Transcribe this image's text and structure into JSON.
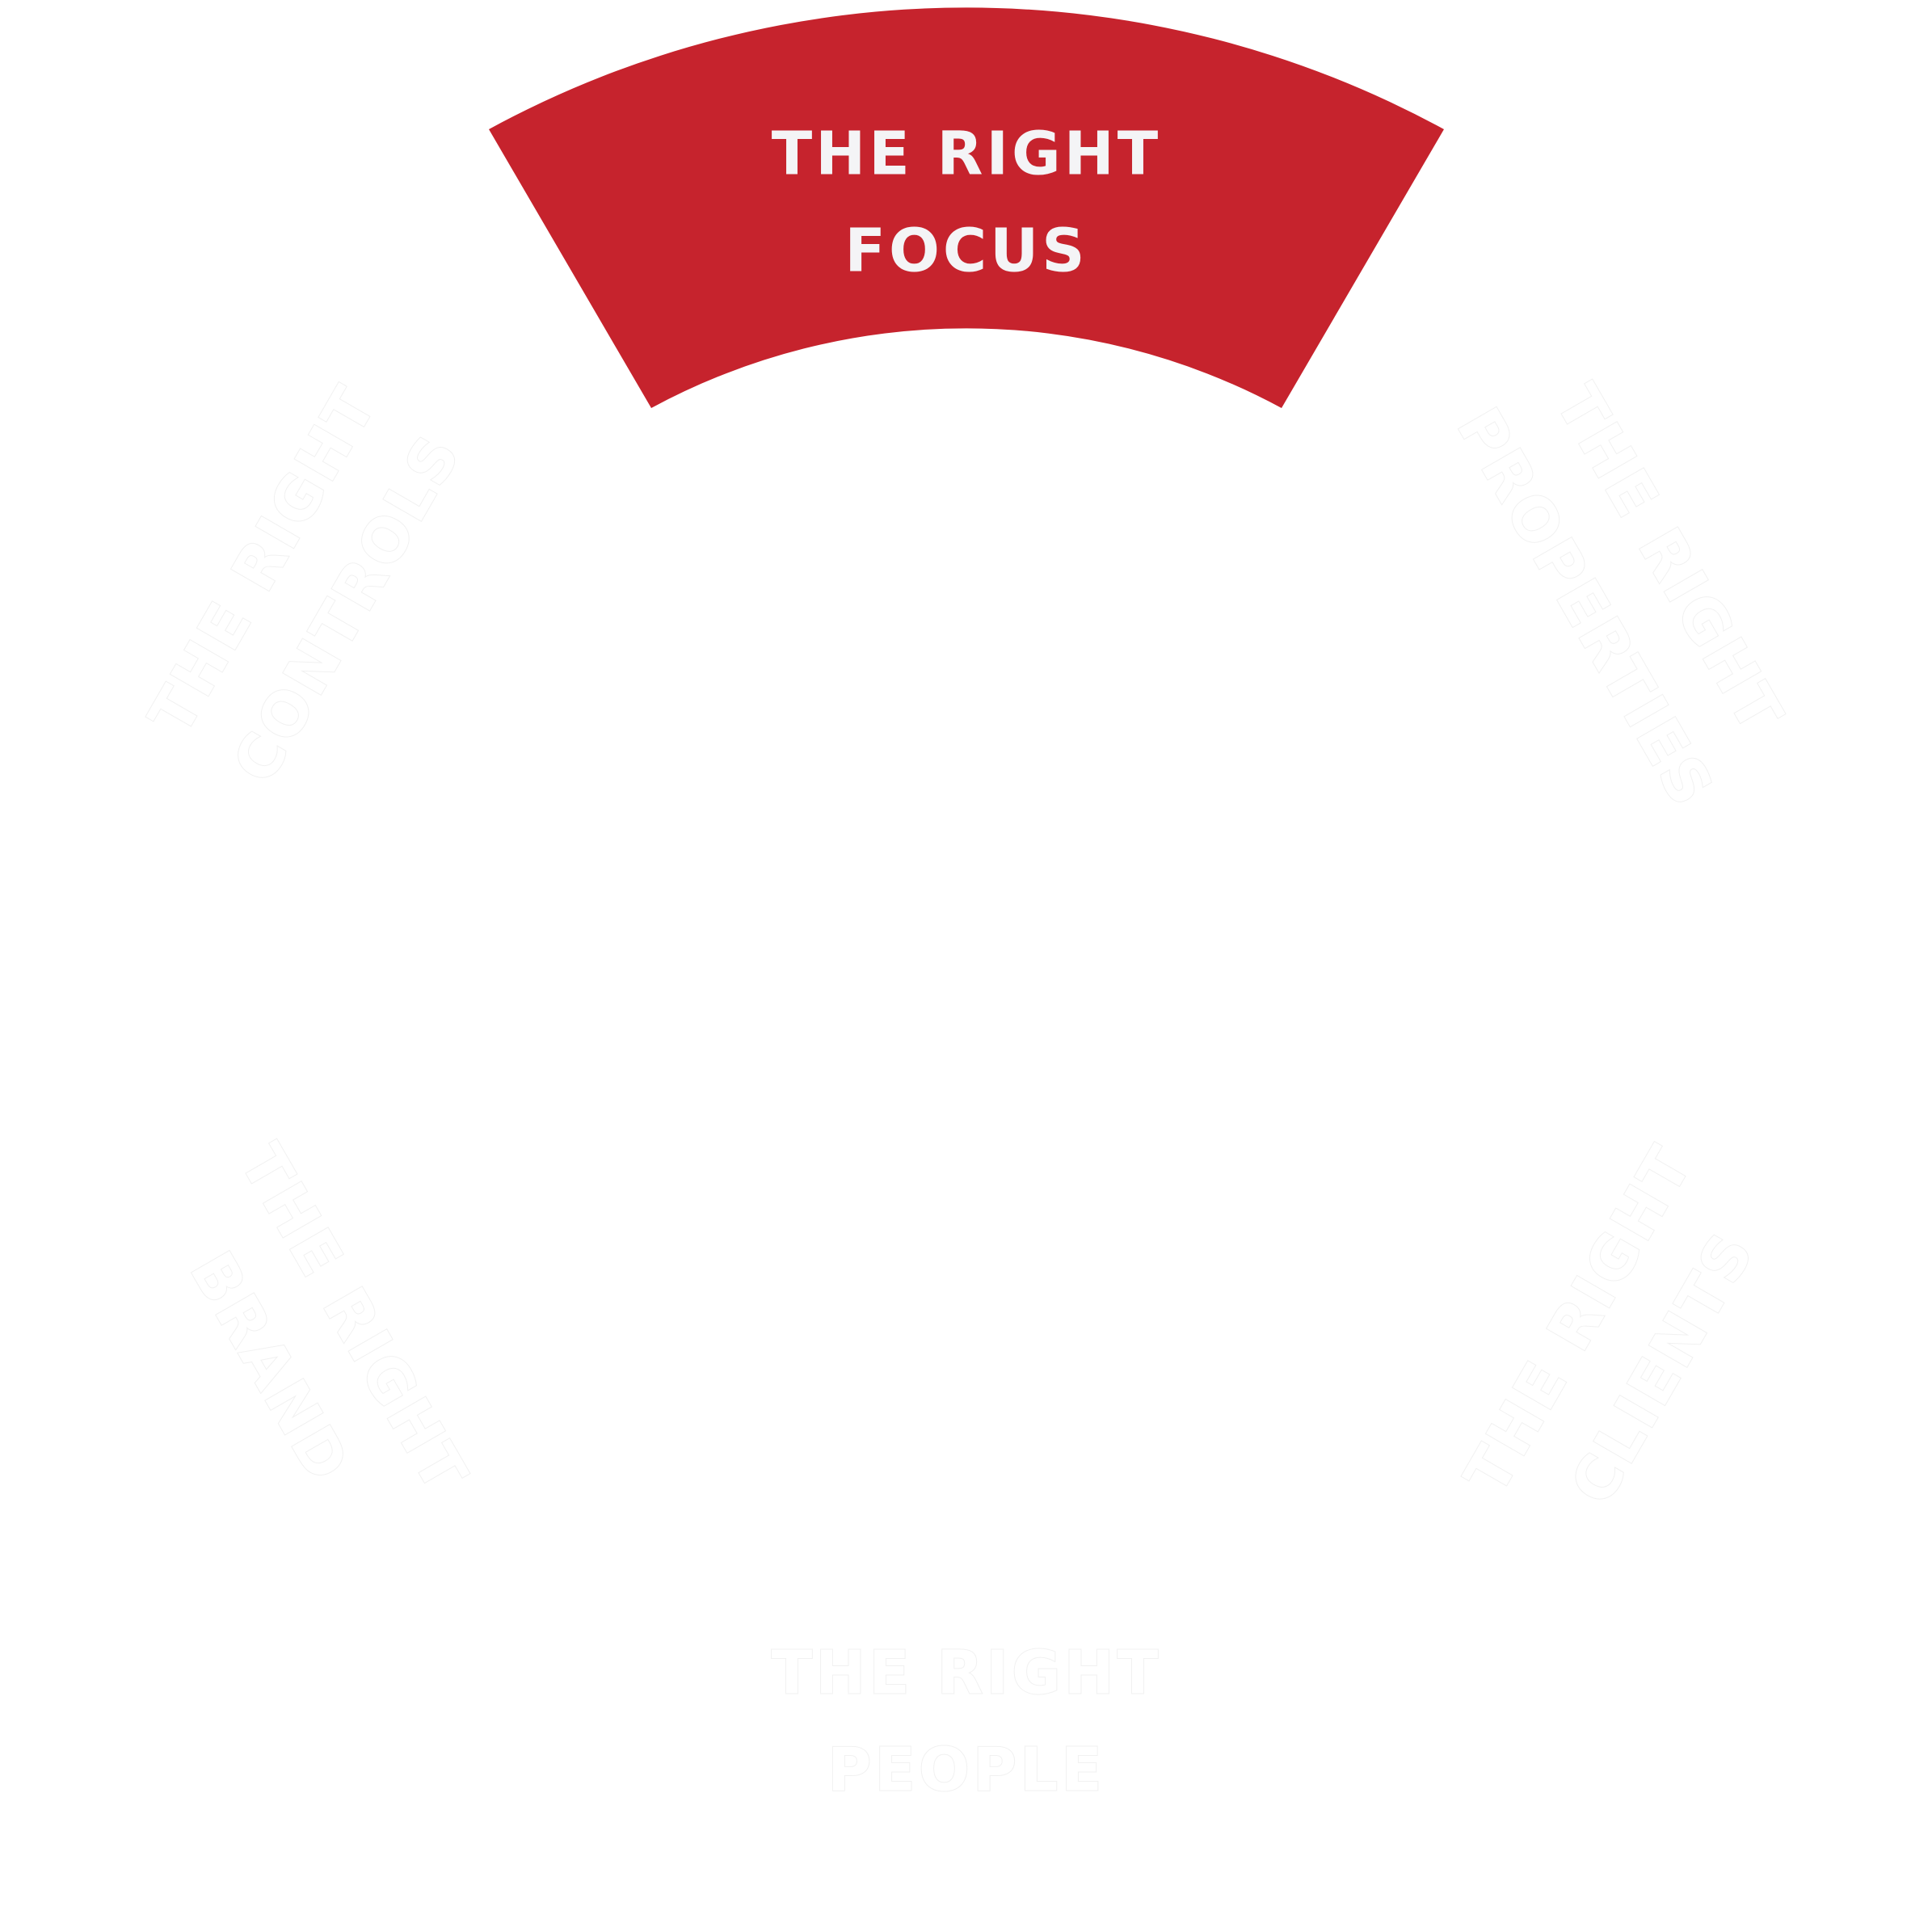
{
  "diagram": {
    "accent_color": "#c6232d",
    "segments": [
      {
        "line1": "THE RIGHT",
        "line2": "FOCUS",
        "active": true
      },
      {
        "line1": "THE RIGHT",
        "line2": "PROPERTIES",
        "active": false
      },
      {
        "line1": "THE RIGHT",
        "line2": "CLIENTS",
        "active": false
      },
      {
        "line1": "THE RIGHT",
        "line2": "PEOPLE",
        "active": false
      },
      {
        "line1": "THE RIGHT",
        "line2": "BRAND",
        "active": false
      },
      {
        "line1": "THE RIGHT",
        "line2": "CONTROLS",
        "active": false
      }
    ]
  }
}
